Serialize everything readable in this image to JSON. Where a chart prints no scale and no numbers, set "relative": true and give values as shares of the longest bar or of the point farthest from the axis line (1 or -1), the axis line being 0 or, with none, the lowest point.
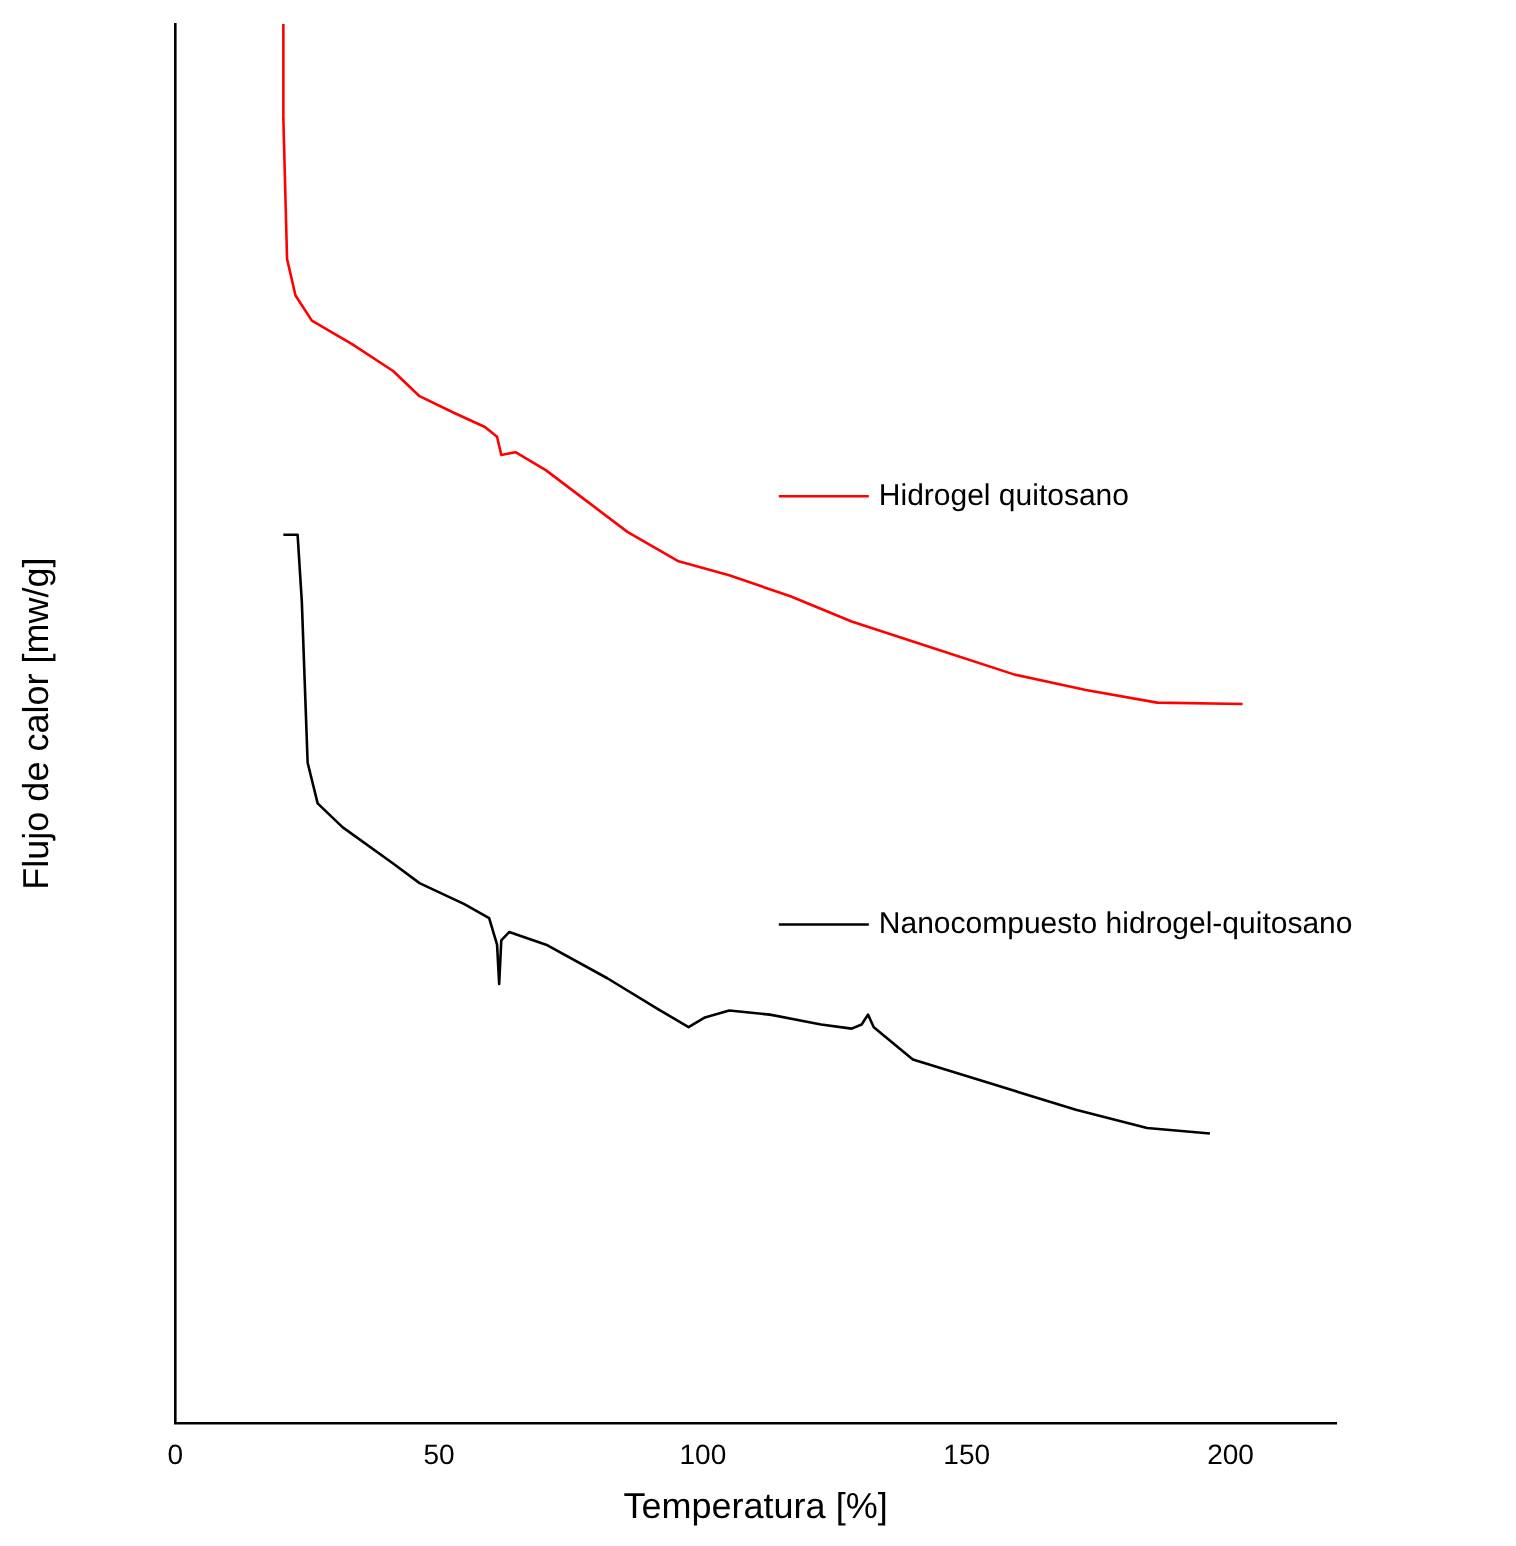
{
  "chart_data": {
    "type": "line",
    "xlabel": "Temperatura [%]",
    "ylabel": "Flujo de calor [mw/g]",
    "relative": true,
    "xlim": [
      0,
      220
    ],
    "xticks": [
      0,
      50,
      100,
      150,
      200
    ],
    "grid": false,
    "legend": "right",
    "marker": "none",
    "line_style": "solid",
    "series": [
      {
        "name": "Hidrogel quitosano",
        "color": "#ff0000",
        "x": [
          20.5,
          20.5,
          21.2,
          22.8,
          25.9,
          33.6,
          41.3,
          46.3,
          52.9,
          58.7,
          61.0,
          61.8,
          64.5,
          70.3,
          78.0,
          85.7,
          95.4,
          105.0,
          116.6,
          128.2,
          143.6,
          159.1,
          172.6,
          186.1,
          202.3
        ],
        "values": [
          1.0,
          0.932,
          0.832,
          0.806,
          0.788,
          0.771,
          0.752,
          0.734,
          0.722,
          0.712,
          0.705,
          0.692,
          0.694,
          0.681,
          0.659,
          0.637,
          0.616,
          0.606,
          0.591,
          0.573,
          0.554,
          0.535,
          0.524,
          0.515,
          0.514
        ]
      },
      {
        "name": "Nanocompuesto hidrogel-quitosano",
        "color": "#000000",
        "x": [
          20.5,
          23.2,
          24.0,
          25.1,
          27.0,
          31.7,
          41.3,
          46.3,
          54.8,
          59.5,
          61.0,
          61.4,
          61.8,
          63.3,
          70.3,
          81.9,
          91.5,
          97.3,
          100.4,
          105.0,
          112.7,
          122.4,
          128.2,
          130.1,
          131.3,
          132.4,
          139.8,
          155.2,
          170.7,
          184.2,
          196.1
        ],
        "values": [
          0.635,
          0.635,
          0.587,
          0.472,
          0.443,
          0.426,
          0.4,
          0.386,
          0.371,
          0.361,
          0.342,
          0.314,
          0.345,
          0.351,
          0.342,
          0.318,
          0.296,
          0.283,
          0.29,
          0.295,
          0.292,
          0.285,
          0.282,
          0.285,
          0.292,
          0.283,
          0.26,
          0.242,
          0.224,
          0.211,
          0.207
        ]
      }
    ]
  }
}
